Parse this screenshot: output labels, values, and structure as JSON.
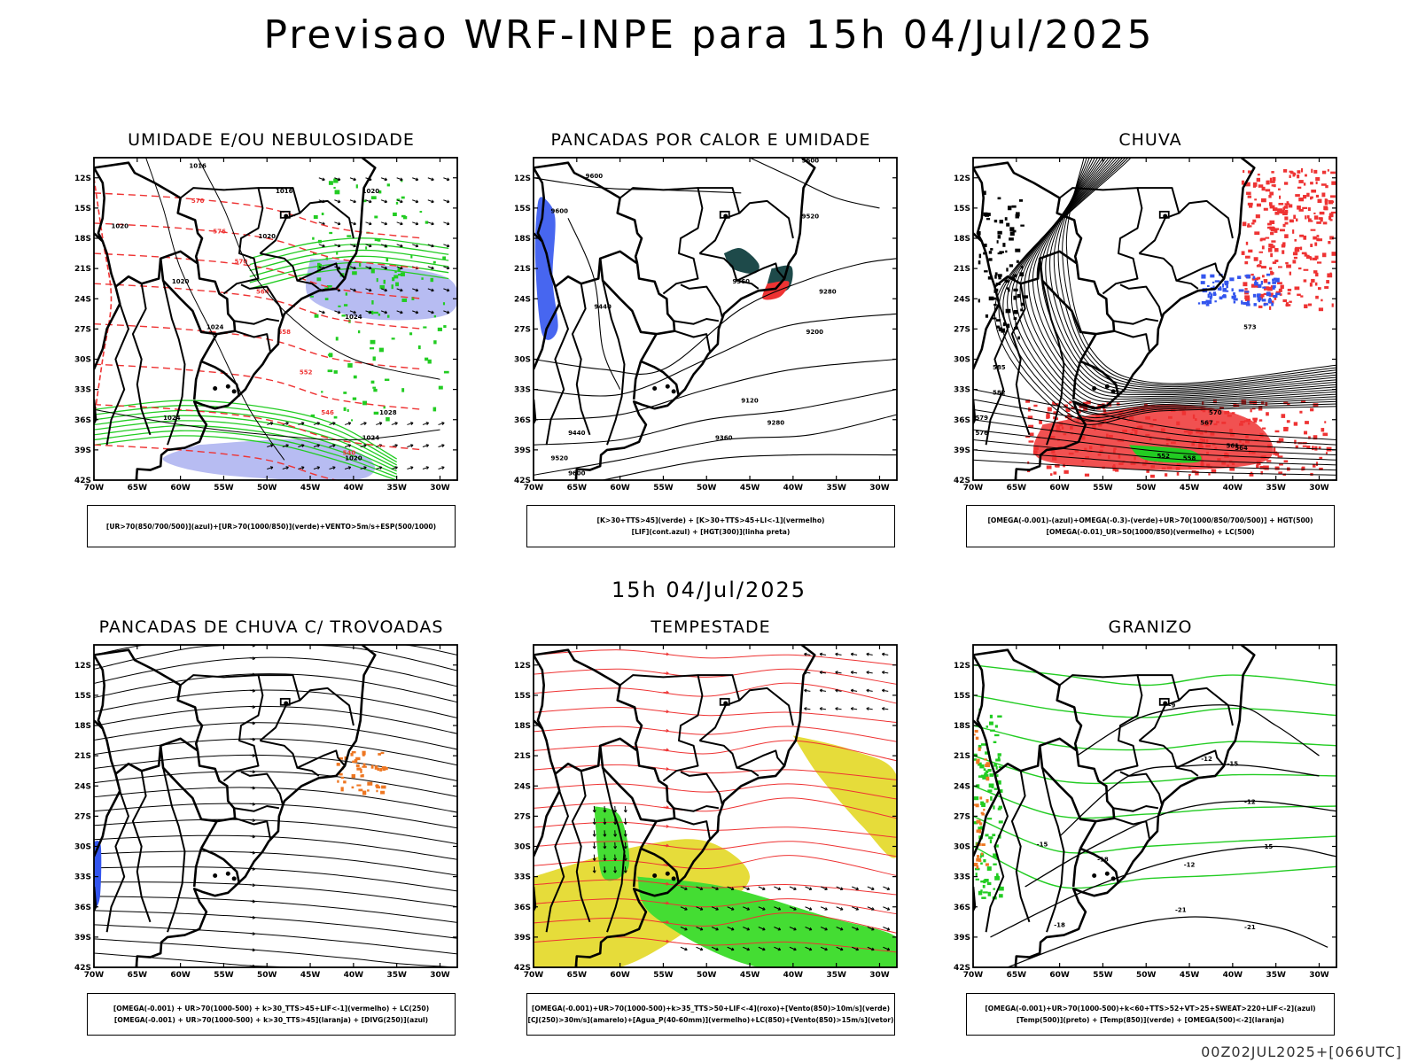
{
  "page": {
    "title": "Previsao WRF-INPE  para 15h 04/Jul/2025",
    "mid_title": "15h 04/Jul/2025",
    "footer": "00Z02JUL2025+[066UTC]"
  },
  "axes": {
    "lat_labels": [
      "12S",
      "15S",
      "18S",
      "21S",
      "24S",
      "27S",
      "30S",
      "33S",
      "36S",
      "39S",
      "42S"
    ],
    "lon_labels": [
      "70W",
      "65W",
      "60W",
      "55W",
      "50W",
      "45W",
      "40W",
      "35W",
      "30W"
    ]
  },
  "panels": [
    {
      "id": "umidade",
      "title": "UMIDADE E/OU NEBULOSIDADE",
      "legend": [
        "[UR>70(850/700/500)](azul)+[UR>70(1000/850)](verde)+VENTO>5m/s+ESP(500/1000)"
      ],
      "contour_labels": [
        "1016",
        "1016",
        "1020",
        "1020",
        "1020",
        "1020",
        "1024",
        "1024",
        "1028",
        "1024",
        "1020",
        "1024",
        "570",
        "576",
        "570",
        "564",
        "558",
        "552",
        "546",
        "540",
        "540"
      ]
    },
    {
      "id": "pancadas-calor",
      "title": "PANCADAS POR CALOR E UMIDADE",
      "legend": [
        "[K>30+TTS>45](verde) + [K>30+TTS>45+LI<-1](vermelho)",
        "[LIF](cont.azul) + [HGT(300)](linha preta)"
      ],
      "contour_labels": [
        "9600",
        "9600",
        "9600",
        "9520",
        "9440",
        "9360",
        "9280",
        "9200",
        "9120",
        "9280",
        "9360",
        "9440",
        "9520",
        "9600"
      ]
    },
    {
      "id": "chuva",
      "title": "CHUVA",
      "legend": [
        "[OMEGA(-0.001)-(azul)+OMEGA(-0.3)-(verde)+UR>70(1000/850/700/500)] + HGT(500)",
        "[OMEGA(-0.01)_UR>50(1000/850)(vermelho) + LC(500)"
      ],
      "contour_labels": [
        "585",
        "582",
        "579",
        "576",
        "573",
        "570",
        "567",
        "564",
        "561",
        "558",
        "552"
      ]
    },
    {
      "id": "pancadas-trovoadas",
      "title": "PANCADAS DE CHUVA C/ TROVOADAS",
      "legend": [
        "[OMEGA(-0.001) + UR>70(1000-500) + k>30_TTS>45+LIF<-1](vermelho) + LC(250)",
        "[OMEGA(-0.001) + UR>70(1000-500) + k>30_TTS>45](laranja) + [DIVG(250)](azul)"
      ],
      "contour_labels": []
    },
    {
      "id": "tempestade",
      "title": "TEMPESTADE",
      "legend": [
        "[OMEGA(-0.001)+UR>70(1000-500)+k>35_TTS>50+LIF<-4](roxo)+[Vento(850)>10m/s](verde)",
        "[CJ(250)>30m/s](amarelo)+[Agua_P(40-60mm)](vermelho)+LC(850)+[Vento(850)>15m/s](vetor)"
      ],
      "contour_labels": []
    },
    {
      "id": "granizo",
      "title": "GRANIZO",
      "legend": [
        "[OMEGA(-0.001)+UR>70(1000-500)+k<60+TTS>52+VT>25+SWEAT>220+LIF<-2](azul)",
        "[Temp(500)](preto) + [Temp(850)](verde) + [OMEGA(500)<-2](laranja)"
      ],
      "contour_labels": [
        "-9",
        "-12",
        "-15",
        "-12",
        "-15",
        "-18",
        "-12",
        "-15",
        "-18",
        "-21",
        "-21"
      ]
    }
  ],
  "colors": {
    "coast": "#000000",
    "green": "#22cc22",
    "blue": "#3355ee",
    "red": "#ee3333",
    "yellow": "#e6dc3a",
    "lavender": "#aab0f0",
    "orange": "#ee7722",
    "teal": "#1e4a4a",
    "light_green": "#44dd33"
  }
}
